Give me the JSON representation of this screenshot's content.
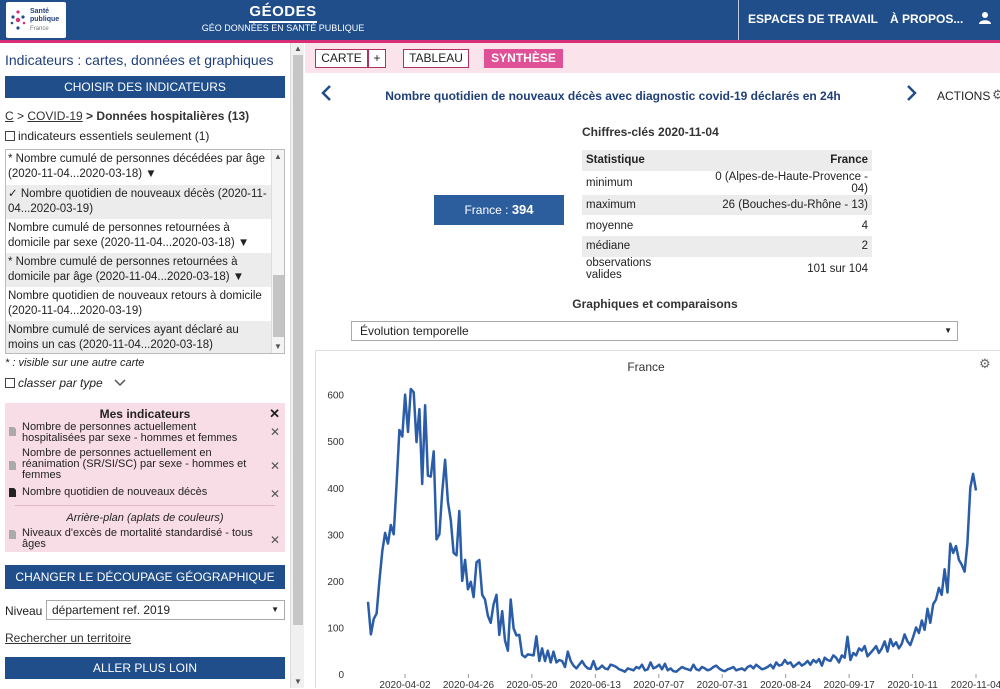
{
  "header": {
    "logo_line1": "Santé",
    "logo_line2": "publique",
    "logo_line3": "France",
    "app_title": "GÉODES",
    "app_subtitle": "GÉO DONNÉES EN SANTÉ PUBLIQUE",
    "nav_workspaces": "ESPACES DE TRAVAIL",
    "nav_about": "À PROPOS...",
    "user_icon": "user-icon"
  },
  "sidebar": {
    "title": "Indicateurs : cartes, données et graphiques",
    "choose_button": "CHOISIR DES INDICATEURS",
    "breadcrumb": {
      "root": "C",
      "sep1": " > ",
      "level1": "COVID-19",
      "sep2": " > ",
      "current": "Données hospitalières (13)"
    },
    "essential_label": "indicateurs essentiels seulement (1)",
    "indicators": [
      {
        "label": "* Nombre cumulé de personnes décédées par âge (2020-11-04...2020-03-18) ▼"
      },
      {
        "label": "✓ Nombre quotidien de nouveaux décès (2020-11-04...2020-03-19)"
      },
      {
        "label": "Nombre cumulé de personnes retournées à domicile par sexe (2020-11-04...2020-03-18) ▼"
      },
      {
        "label": "* Nombre cumulé de personnes retournées à domicile par âge (2020-11-04...2020-03-18) ▼"
      },
      {
        "label": "Nombre quotidien de nouveaux retours à domicile (2020-11-04...2020-03-19)"
      },
      {
        "label": "Nombre cumulé de services ayant déclaré au moins un cas (2020-11-04...2020-03-18)"
      }
    ],
    "visible_note": "* : visible sur une autre carte",
    "classer_label": "classer par type",
    "mes_indicateurs": {
      "title": "Mes indicateurs",
      "items": [
        {
          "label": "Nombre de personnes actuellement hospitalisées par sexe - hommes et femmes"
        },
        {
          "label": "Nombre de personnes actuellement en réanimation (SR/SI/SC) par sexe - hommes et femmes"
        },
        {
          "label": "Nombre quotidien de nouveaux décès"
        }
      ],
      "arriere_plan_title": "Arrière-plan (aplats de couleurs)",
      "arriere_plan_item": "Niveaux d'excès de mortalité standardisé - tous âges"
    },
    "decoupage_button": "CHANGER LE DÉCOUPAGE GÉOGRAPHIQUE",
    "niveau_label": "Niveau",
    "niveau_value": "département ref. 2019",
    "search_link": "Rechercher un territoire",
    "further_button": "ALLER PLUS LOIN"
  },
  "toolbar": {
    "carte": "CARTE",
    "plus": "+",
    "tableau": "TABLEAU",
    "synthese": "SYNTHÈSE"
  },
  "main": {
    "indicator_title": "Nombre quotidien de nouveaux décès avec diagnostic covid-19 déclarés en 24h",
    "actions_label": "ACTIONS",
    "france_label": "France : ",
    "france_value": "394",
    "stats": {
      "title": "Chiffres-clés 2020-11-04",
      "col_stat": "Statistique",
      "col_france": "France",
      "rows": [
        {
          "label": "minimum",
          "value": "0 (Alpes-de-Haute-Provence - 04)"
        },
        {
          "label": "maximum",
          "value": "26 (Bouches-du-Rhône - 13)"
        },
        {
          "label": "moyenne",
          "value": "4"
        },
        {
          "label": "médiane",
          "value": "2"
        },
        {
          "label": "observations valides",
          "value": "101 sur 104"
        }
      ]
    },
    "graph_section_title": "Graphiques et comparaisons",
    "evolution_select": "Évolution temporelle"
  },
  "colors": {
    "header_blue": "#1f4e8a",
    "accent_pink": "#e05096",
    "line_blue": "#2a5ca8"
  },
  "chart_data": {
    "type": "line",
    "title": "France",
    "xlabel": "",
    "ylabel": "",
    "ylim": [
      0,
      640
    ],
    "yticks": [
      "0",
      "100",
      "200",
      "300",
      "400",
      "500",
      "600"
    ],
    "xticks": [
      "2020-04-02",
      "2020-04-26",
      "2020-05-20",
      "2020-06-13",
      "2020-07-07",
      "2020-07-31",
      "2020-08-24",
      "2020-09-17",
      "2020-10-11",
      "2020-11-04"
    ],
    "x_start": "2020-03-19",
    "x_end": "2020-11-04",
    "series": [
      {
        "values": [
          155,
          85,
          118,
          130,
          200,
          264,
          303,
          280,
          320,
          300,
          405,
          524,
          510,
          600,
          520,
          612,
          605,
          498,
          569,
          408,
          577,
          426,
          424,
          478,
          289,
          300,
          390,
          460,
          370,
          330,
          260,
          255,
          350,
          200,
          245,
          182,
          198,
          165,
          240,
          245,
          170,
          160,
          125,
          110,
          150,
          170,
          84,
          135,
          72,
          50,
          160,
          98,
          83,
          84,
          41,
          36,
          42,
          41,
          40,
          81,
          28,
          55,
          28,
          50,
          25,
          48,
          25,
          30,
          28,
          15,
          48,
          28,
          18,
          12,
          20,
          28,
          18,
          12,
          11,
          28,
          10,
          12,
          18,
          12,
          10,
          20,
          18,
          15,
          10,
          8,
          5,
          12,
          10,
          8,
          15,
          12,
          20,
          8,
          10,
          25,
          12,
          15,
          20,
          10,
          22,
          8,
          12,
          6,
          5,
          10,
          15,
          12,
          10,
          8,
          20,
          10,
          8,
          15,
          12,
          8,
          10,
          15,
          18,
          12,
          8,
          6,
          10,
          12,
          15,
          8,
          10,
          12,
          8,
          15,
          18,
          12,
          20,
          15,
          10,
          12,
          15,
          20,
          12,
          25,
          18,
          20,
          30,
          22,
          25,
          15,
          20,
          25,
          18,
          22,
          28,
          20,
          30,
          25,
          32,
          18,
          35,
          30,
          28,
          40,
          35,
          25,
          40,
          35,
          80,
          30,
          45,
          40,
          55,
          50,
          60,
          38,
          45,
          52,
          60,
          45,
          55,
          70,
          48,
          75,
          60,
          68,
          55,
          65,
          85,
          70,
          62,
          80,
          100,
          88,
          115,
          95,
          140,
          110,
          150,
          160,
          185,
          170,
          225,
          175,
          280,
          260,
          275,
          245,
          235,
          220,
          280,
          400,
          430,
          394
        ]
      }
    ]
  }
}
